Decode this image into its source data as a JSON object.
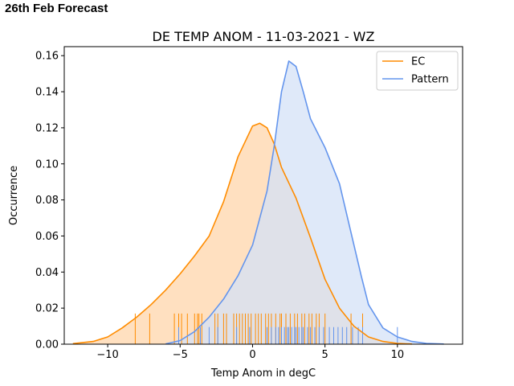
{
  "header": {
    "text": "26th Feb Forecast"
  },
  "chart_data": {
    "type": "area",
    "title": "DE TEMP ANOM - 11-03-2021 - WZ",
    "xlabel": "Temp Anom in degC",
    "ylabel": "Occurrence",
    "xlim": [
      -13.0,
      14.5
    ],
    "ylim": [
      0.0,
      0.165
    ],
    "xticks": [
      -10,
      -5,
      0,
      5,
      10
    ],
    "xtick_labels": [
      "−10",
      "−5",
      "0",
      "5",
      "10"
    ],
    "yticks": [
      0.0,
      0.02,
      0.04,
      0.06,
      0.08,
      0.1,
      0.12,
      0.14,
      0.16
    ],
    "ytick_labels": [
      "0.00",
      "0.02",
      "0.04",
      "0.06",
      "0.08",
      "0.10",
      "0.12",
      "0.14",
      "0.16"
    ],
    "legend_position": "top-right",
    "grid": false,
    "series": [
      {
        "name": "EC",
        "color": "#ff8c00",
        "fill": "#ffe0c0",
        "x": [
          -12.4,
          -11.0,
          -10.0,
          -9.0,
          -8.0,
          -7.0,
          -6.0,
          -5.0,
          -4.0,
          -3.0,
          -2.0,
          -1.0,
          0.0,
          0.5,
          1.0,
          1.5,
          2.0,
          3.0,
          4.0,
          5.0,
          6.0,
          7.0,
          8.0,
          9.0,
          10.0,
          11.0
        ],
        "y": [
          0.0003,
          0.0015,
          0.004,
          0.009,
          0.015,
          0.022,
          0.03,
          0.039,
          0.049,
          0.06,
          0.079,
          0.104,
          0.121,
          0.1225,
          0.12,
          0.111,
          0.098,
          0.081,
          0.059,
          0.036,
          0.02,
          0.01,
          0.004,
          0.0015,
          0.0004,
          0.0001
        ]
      },
      {
        "name": "Pattern",
        "color": "#6495ed",
        "fill": "#d4e1f7",
        "x": [
          -6.0,
          -5.0,
          -4.0,
          -3.0,
          -2.0,
          -1.0,
          0.0,
          1.0,
          1.5,
          2.0,
          2.5,
          3.0,
          3.5,
          4.0,
          5.0,
          6.0,
          7.0,
          7.5,
          8.0,
          9.0,
          10.0,
          11.0,
          12.0,
          13.2
        ],
        "y": [
          0.0002,
          0.002,
          0.007,
          0.015,
          0.025,
          0.038,
          0.055,
          0.085,
          0.11,
          0.14,
          0.157,
          0.154,
          0.14,
          0.125,
          0.109,
          0.089,
          0.055,
          0.038,
          0.022,
          0.009,
          0.004,
          0.0015,
          0.0004,
          0.0001
        ]
      }
    ],
    "rugs": [
      {
        "name": "EC",
        "color": "#ff8c00",
        "height": 0.017,
        "x": [
          -8.1,
          -7.1,
          -5.4,
          -5.1,
          -4.9,
          -4.5,
          -4.0,
          -3.8,
          -3.7,
          -3.5,
          -2.6,
          -2.4,
          -2.0,
          -1.8,
          -1.3,
          -1.1,
          -0.9,
          -0.7,
          -0.5,
          -0.3,
          -0.1,
          0.2,
          0.4,
          0.6,
          0.9,
          1.1,
          1.3,
          1.6,
          1.9,
          2.0,
          2.3,
          2.6,
          2.9,
          3.1,
          3.4,
          3.6,
          3.9,
          4.1,
          4.4,
          4.6,
          5.0,
          6.8,
          7.6
        ]
      },
      {
        "name": "Pattern",
        "color": "#6495ed",
        "height": 0.0095,
        "x": [
          -5.1,
          -3.6,
          -3.0,
          -2.4,
          -1.1,
          -0.2,
          1.0,
          1.3,
          1.6,
          1.8,
          2.0,
          2.2,
          2.4,
          2.5,
          2.7,
          2.9,
          3.0,
          3.2,
          3.4,
          3.5,
          3.8,
          4.0,
          4.3,
          4.6,
          4.9,
          5.3,
          5.6,
          5.9,
          6.2,
          6.5,
          6.9,
          7.3,
          7.6,
          10.0
        ]
      }
    ]
  }
}
